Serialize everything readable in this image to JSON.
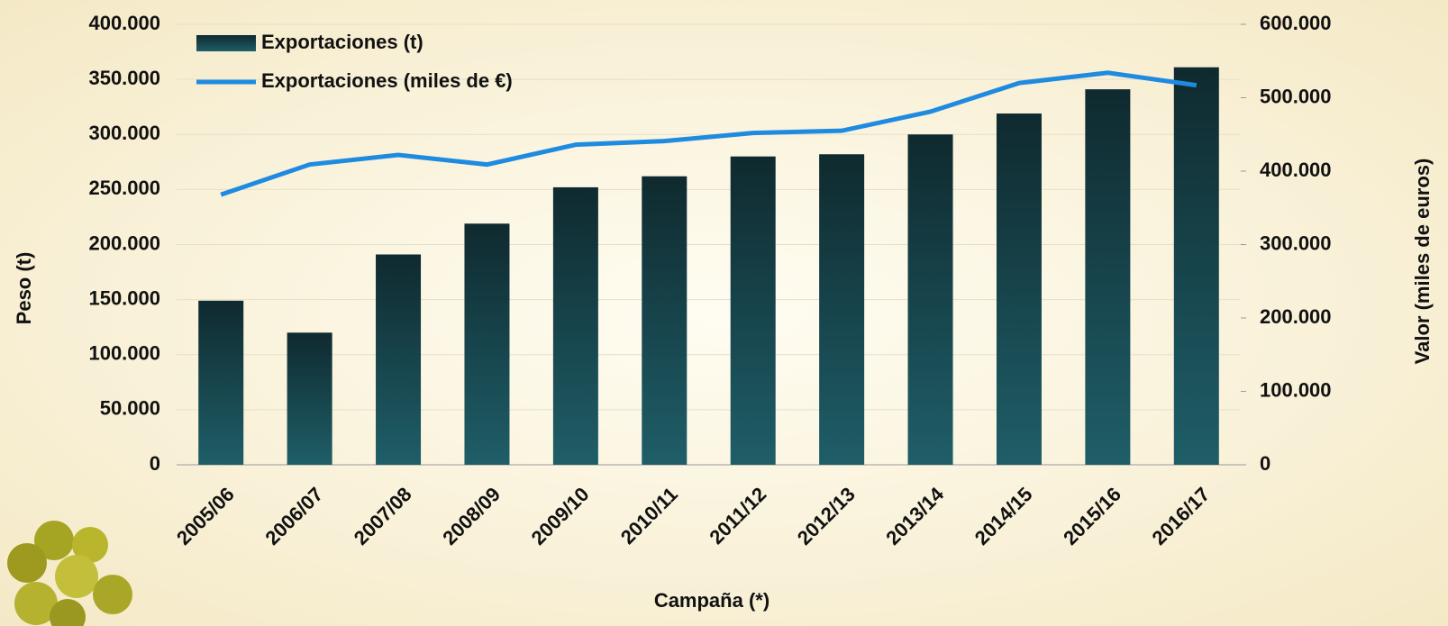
{
  "chart_data": {
    "type": "bar_line",
    "x_label": "Campaña (*)",
    "y_label": "Peso (t)",
    "y2_label": "Valor (miles de euros)",
    "categories": [
      "2005/06",
      "2006/07",
      "2007/08",
      "2008/09",
      "2009/10",
      "2010/11",
      "2011/12",
      "2012/13",
      "2013/14",
      "2014/15",
      "2015/16",
      "2016/17"
    ],
    "series": [
      {
        "name": "Exportaciones (t)",
        "type": "bar",
        "color": "#0f2a2f",
        "values": [
          149000,
          120000,
          191000,
          219000,
          252000,
          262000,
          280000,
          282000,
          300000,
          319000,
          341000,
          361000
        ]
      },
      {
        "name": "Exportaciones (miles de €)",
        "type": "line",
        "axis": "y2",
        "color": "#1f8be0",
        "values": [
          368000,
          409000,
          422000,
          409000,
          436000,
          441000,
          452000,
          455000,
          481000,
          520000,
          534000,
          517000
        ]
      }
    ],
    "ylim": [
      0,
      400000
    ],
    "yticks": [
      0,
      {
        "value": 50000,
        "label": "50.000"
      },
      {
        "value": 100000,
        "label": "100.000"
      },
      {
        "value": 150000,
        "label": "150.000"
      },
      {
        "value": 200000,
        "label": "200.000"
      },
      {
        "value": 250000,
        "label": "250.000"
      },
      {
        "value": 300000,
        "label": "300.000"
      },
      {
        "value": 350000,
        "label": "350.000"
      },
      {
        "value": 400000,
        "label": "400.000"
      }
    ],
    "y2lim": [
      0,
      600000
    ],
    "y2ticks": [
      0,
      {
        "value": 100000,
        "label": "100.000"
      },
      {
        "value": 200000,
        "label": "200.000"
      },
      {
        "value": 300000,
        "label": "300.000"
      },
      {
        "value": 400000,
        "label": "400.000"
      },
      {
        "value": 500000,
        "label": "500.000"
      },
      {
        "value": 600000,
        "label": "600.000"
      }
    ],
    "legend": "top-left"
  }
}
